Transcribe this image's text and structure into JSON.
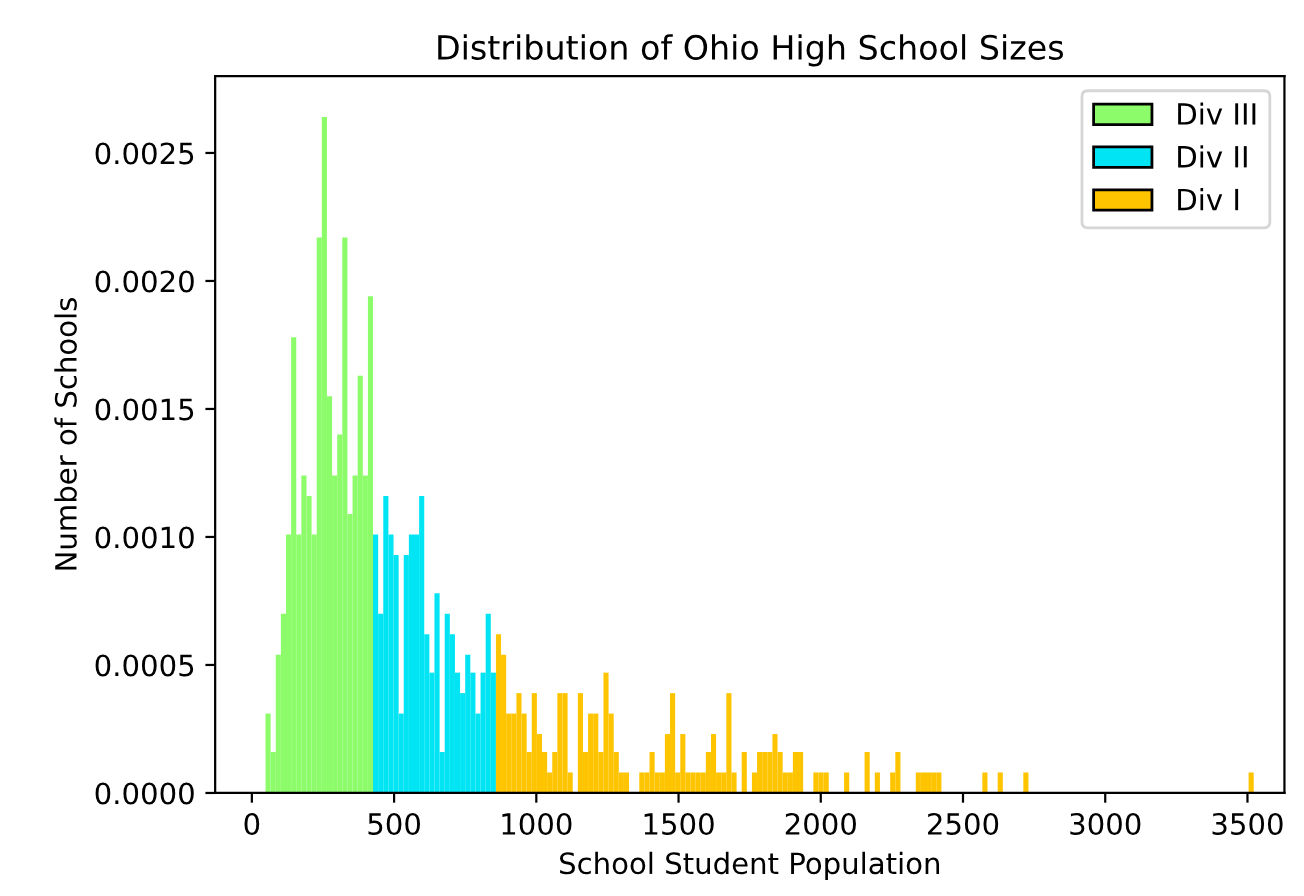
{
  "chart_data": {
    "type": "histogram",
    "title": "Distribution of Ohio High School Sizes",
    "xlabel": "School Student Population",
    "ylabel": "Number of Schools",
    "xlim": [
      -129,
      3630
    ],
    "ylim": [
      0,
      0.0028
    ],
    "xticks": [
      0,
      500,
      1000,
      1500,
      2000,
      2500,
      3000,
      3500
    ],
    "yticks": [
      {
        "value": 0,
        "label": "0.0000"
      },
      {
        "value": 0.0005,
        "label": "0.0005"
      },
      {
        "value": 0.001,
        "label": "0.0010"
      },
      {
        "value": 0.0015,
        "label": "0.0015"
      },
      {
        "value": 0.002,
        "label": "0.0020"
      },
      {
        "value": 0.0025,
        "label": "0.0025"
      }
    ],
    "grid": false,
    "legend": "top right",
    "bins": [
      48,
      66,
      84,
      102,
      120,
      138,
      156,
      174,
      192,
      210,
      228,
      246,
      264,
      282,
      300,
      318,
      336,
      354,
      372,
      390,
      408,
      426,
      444,
      462,
      480,
      498,
      516,
      534,
      552,
      570,
      588,
      606,
      624,
      642,
      660,
      678,
      696,
      714,
      732,
      750,
      768,
      786,
      804,
      822,
      840,
      858,
      876,
      894,
      912,
      930,
      948,
      966,
      984,
      1002,
      1020,
      1038,
      1056,
      1074,
      1092,
      1110,
      1128,
      1146,
      1164,
      1182,
      1200,
      1218,
      1236,
      1254,
      1272,
      1290,
      1308,
      1326,
      1344,
      1362,
      1380,
      1398,
      1416,
      1434,
      1452,
      1470,
      1488,
      1506,
      1524,
      1542,
      1560,
      1578,
      1596,
      1614,
      1632,
      1650,
      1668,
      1686,
      1704,
      1722,
      1740,
      1758,
      1776,
      1794,
      1812,
      1830,
      1848,
      1866,
      1884,
      1902,
      1920,
      1938,
      1956,
      1974,
      1992,
      2010,
      2028,
      2046,
      2064,
      2082,
      2100,
      2118,
      2136,
      2154,
      2172,
      2190,
      2208,
      2226,
      2244,
      2262,
      2280,
      2298,
      2316,
      2334,
      2352,
      2370,
      2388,
      2406,
      2424,
      2442,
      2460,
      2478,
      2496,
      2514,
      2532,
      2550,
      2568,
      2586,
      2604,
      2622,
      2640,
      2658,
      2676,
      2694,
      2712,
      2730,
      2748,
      2766,
      2784,
      2802,
      2820,
      2838,
      2856,
      2874,
      2892,
      2910,
      2928,
      2946,
      2964,
      2982,
      3000,
      3018,
      3036,
      3054,
      3072,
      3090,
      3108,
      3126,
      3144,
      3162,
      3180,
      3198,
      3216,
      3234,
      3252,
      3270,
      3288,
      3306,
      3324,
      3342,
      3360,
      3378,
      3396,
      3414,
      3432,
      3450,
      3468,
      3486,
      3504,
      3522
    ],
    "series": [
      {
        "name": "Div III",
        "color": "#8dfc6a",
        "values": [
          0.00031,
          0.00016,
          0.00054,
          0.0007,
          0.00101,
          0.00178,
          0.00101,
          0.00124,
          0.00116,
          0.00101,
          0.00217,
          0.00264,
          0.00155,
          0.00124,
          0.0014,
          0.00217,
          0.00109,
          0.00124,
          0.00163,
          0.00124,
          0.00194,
          null,
          null,
          null,
          null,
          null,
          null,
          null,
          null,
          null,
          null,
          null,
          null,
          null,
          null,
          null,
          null,
          null,
          null,
          null,
          null,
          null,
          null,
          null,
          null,
          null,
          null,
          null,
          null,
          null,
          null,
          null,
          null,
          null,
          null,
          null,
          null,
          null,
          null,
          null,
          null,
          null,
          null,
          null,
          null,
          null,
          null,
          null,
          null,
          null,
          null,
          null,
          null,
          null,
          null,
          null,
          null,
          null,
          null,
          null,
          null,
          null,
          null,
          null,
          null,
          null,
          null,
          null,
          null,
          null,
          null,
          null,
          null,
          null,
          null,
          null,
          null,
          null,
          null,
          null,
          null,
          null,
          null,
          null,
          null,
          null,
          null,
          null,
          null,
          null,
          null,
          null,
          null,
          null,
          null,
          null,
          null,
          null,
          null,
          null,
          null,
          null,
          null,
          null,
          null,
          null,
          null,
          null,
          null,
          null,
          null,
          null,
          null,
          null,
          null,
          null,
          null,
          null,
          null,
          null,
          null,
          null,
          null,
          null,
          null,
          null,
          null,
          null,
          null,
          null,
          null,
          null,
          null,
          null,
          null,
          null,
          null,
          null,
          null,
          null,
          null,
          null,
          null,
          null,
          null,
          null,
          null,
          null,
          null,
          null,
          null,
          null,
          null,
          null,
          null,
          null,
          null,
          null,
          null,
          null,
          null,
          null,
          null,
          null,
          null,
          null,
          null,
          null,
          null,
          null,
          null,
          null,
          null
        ]
      },
      {
        "name": "Div II",
        "color": "#00e4f4",
        "values": [
          null,
          null,
          null,
          null,
          null,
          null,
          null,
          null,
          null,
          null,
          null,
          null,
          null,
          null,
          null,
          null,
          null,
          null,
          null,
          null,
          null,
          0.00101,
          0.0007,
          0.00116,
          0.00101,
          0.00093,
          0.00031,
          0.00093,
          0.00101,
          0.00101,
          0.00116,
          0.00062,
          0.00047,
          0.00078,
          0.00016,
          0.0007,
          0.00062,
          0.00047,
          0.00039,
          0.00054,
          0.00047,
          0.00031,
          0.00047,
          0.0007,
          0.00047,
          null,
          null,
          null,
          null,
          null,
          null,
          null,
          null,
          null,
          null,
          null,
          null,
          null,
          null,
          null,
          null,
          null,
          null,
          null,
          null,
          null,
          null,
          null,
          null,
          null,
          null,
          null,
          null,
          null,
          null,
          null,
          null,
          null,
          null,
          null,
          null,
          null,
          null,
          null,
          null,
          null,
          null,
          null,
          null,
          null,
          null,
          null,
          null,
          null,
          null,
          null,
          null,
          null,
          null,
          null,
          null,
          null,
          null,
          null,
          null,
          null,
          null,
          null,
          null,
          null,
          null,
          null,
          null,
          null,
          null,
          null,
          null,
          null,
          null,
          null,
          null,
          null,
          null,
          null,
          null,
          null,
          null,
          null,
          null,
          null,
          null,
          null,
          null,
          null,
          null,
          null,
          null,
          null,
          null,
          null,
          null,
          null,
          null,
          null,
          null,
          null,
          null,
          null,
          null,
          null,
          null,
          null,
          null,
          null,
          null,
          null,
          null,
          null,
          null,
          null,
          null,
          null,
          null,
          null,
          null,
          null,
          null,
          null,
          null,
          null,
          null,
          null,
          null,
          null,
          null,
          null,
          null,
          null,
          null,
          null,
          null,
          null,
          null,
          null,
          null,
          null,
          null,
          null,
          null,
          null,
          null,
          null,
          null
        ]
      },
      {
        "name": "Div I",
        "color": "#ffc400",
        "values": [
          null,
          null,
          null,
          null,
          null,
          null,
          null,
          null,
          null,
          null,
          null,
          null,
          null,
          null,
          null,
          null,
          null,
          null,
          null,
          null,
          null,
          null,
          null,
          null,
          null,
          null,
          null,
          null,
          null,
          null,
          null,
          null,
          null,
          null,
          null,
          null,
          null,
          null,
          null,
          null,
          null,
          null,
          null,
          null,
          null,
          0.00062,
          0.00054,
          0.00031,
          0.00031,
          0.00039,
          0.00031,
          0.00016,
          0.00039,
          0.00023,
          0.00016,
          8e-05,
          0.00016,
          0.00039,
          0.00039,
          8e-05,
          0,
          0.00039,
          0.00016,
          0.00031,
          0.00031,
          0.00016,
          0.00047,
          0.00031,
          0.00016,
          8e-05,
          8e-05,
          0,
          0,
          8e-05,
          8e-05,
          0.00016,
          8e-05,
          8e-05,
          0.00023,
          0.00039,
          8e-05,
          0.00023,
          8e-05,
          8e-05,
          8e-05,
          8e-05,
          0.00016,
          0.00023,
          8e-05,
          8e-05,
          0.00039,
          8e-05,
          0,
          0.00016,
          0,
          8e-05,
          0.00016,
          0.00016,
          0.00016,
          0.00023,
          0.00016,
          8e-05,
          8e-05,
          0.00016,
          0.00016,
          0,
          0,
          8e-05,
          8e-05,
          8e-05,
          0,
          0,
          0,
          8e-05,
          0,
          0,
          0,
          0.00016,
          0,
          8e-05,
          0,
          0,
          8e-05,
          0.00016,
          0,
          0,
          0,
          8e-05,
          8e-05,
          8e-05,
          8e-05,
          8e-05,
          0,
          0,
          0,
          0,
          0,
          0,
          0,
          0,
          8e-05,
          0,
          0,
          8e-05,
          0,
          0,
          0,
          0,
          8e-05,
          0,
          0,
          0,
          0,
          0,
          0,
          0,
          0,
          0,
          0,
          0,
          0,
          0,
          0,
          0,
          0,
          0,
          0,
          0,
          0,
          0,
          0,
          0,
          0,
          0,
          0,
          0,
          0,
          0,
          0,
          0,
          0,
          0,
          0,
          0,
          0,
          0,
          0,
          0,
          0,
          0,
          0,
          0,
          8e-05
        ]
      }
    ]
  }
}
